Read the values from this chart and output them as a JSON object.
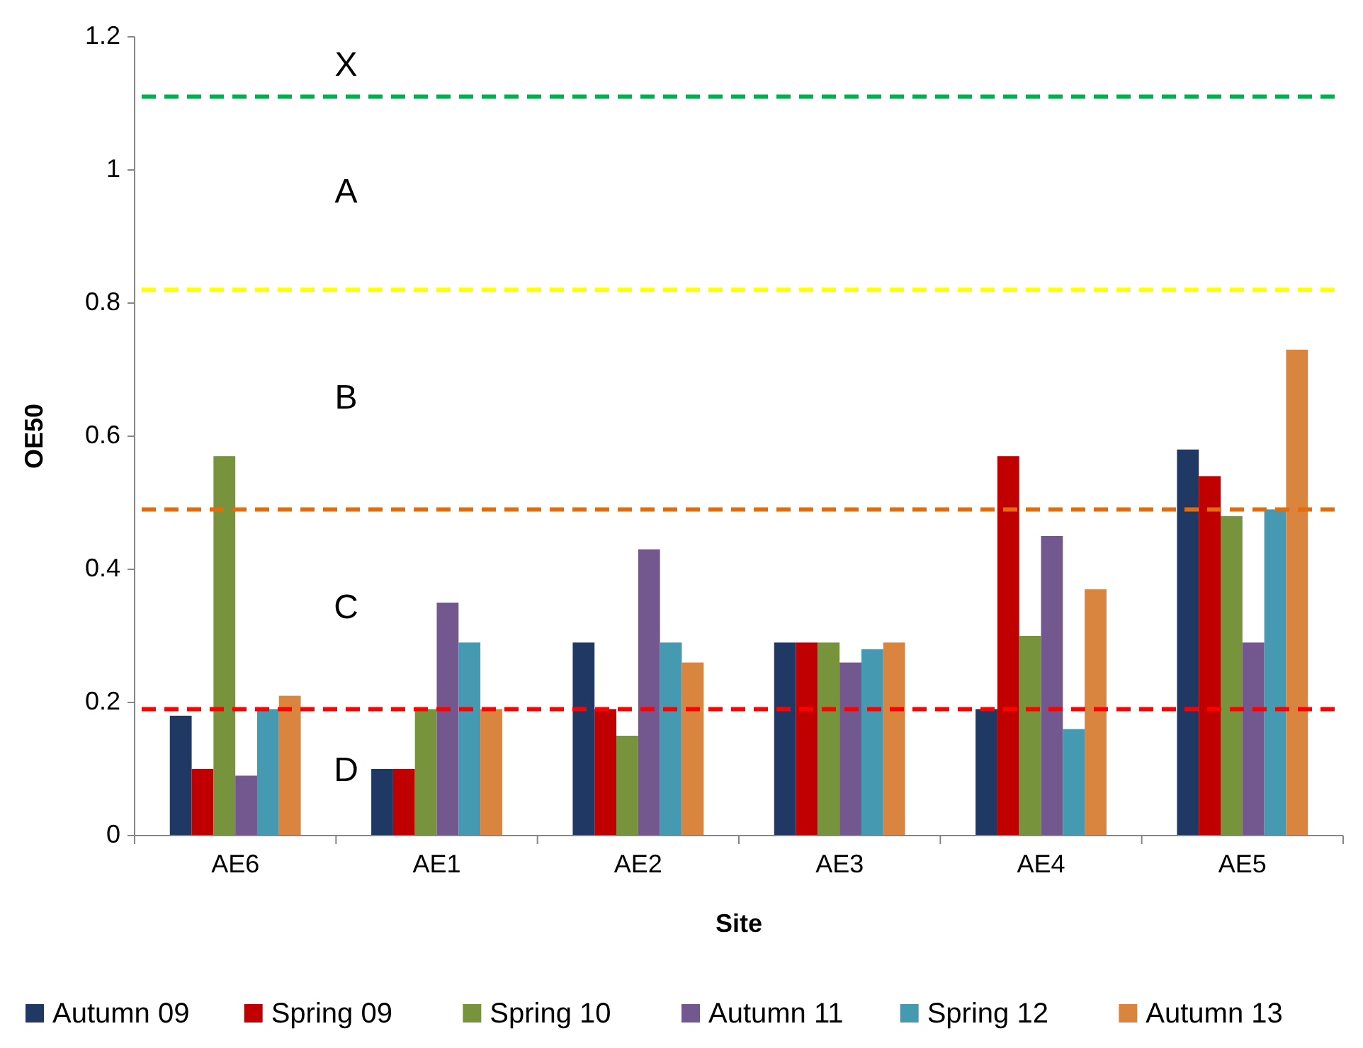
{
  "chart_data": {
    "type": "bar",
    "xlabel": "Site",
    "ylabel": "OE50",
    "categories": [
      "AE6",
      "AE1",
      "AE2",
      "AE3",
      "AE4",
      "AE5"
    ],
    "series": [
      {
        "name": "Autumn 09",
        "color": "#1f3864",
        "values": [
          0.18,
          0.1,
          0.29,
          0.29,
          0.19,
          0.58
        ]
      },
      {
        "name": "Spring 09",
        "color": "#c00000",
        "values": [
          0.1,
          0.1,
          0.19,
          0.29,
          0.57,
          0.54
        ]
      },
      {
        "name": "Spring 10",
        "color": "#77933c",
        "values": [
          0.57,
          0.19,
          0.15,
          0.29,
          0.3,
          0.48
        ]
      },
      {
        "name": "Autumn 11",
        "color": "#72588f",
        "values": [
          0.09,
          0.35,
          0.43,
          0.26,
          0.45,
          0.29
        ]
      },
      {
        "name": "Spring 12",
        "color": "#4599b0",
        "values": [
          0.19,
          0.29,
          0.29,
          0.28,
          0.16,
          0.49
        ]
      },
      {
        "name": "Autumn 13",
        "color": "#d9843f",
        "values": [
          0.21,
          0.19,
          0.26,
          0.29,
          0.37,
          0.73
        ]
      }
    ],
    "ylim": [
      0,
      1.2
    ],
    "yticks": [
      0,
      0.2,
      0.4,
      0.6,
      0.8,
      1,
      1.2
    ],
    "grid": false,
    "legend": "bottom",
    "ref_lines": [
      {
        "axis": "y",
        "value": 1.11,
        "color": "#00b050",
        "line_style": "dashed"
      },
      {
        "axis": "y",
        "value": 0.82,
        "color": "#ffff00",
        "line_style": "dashed"
      },
      {
        "axis": "y",
        "value": 0.49,
        "color": "#e46c0a",
        "line_style": "dashed"
      },
      {
        "axis": "y",
        "value": 0.19,
        "color": "#ff0000",
        "line_style": "dashed"
      }
    ],
    "annotations": [
      "X",
      "A",
      "B",
      "C",
      "D"
    ]
  }
}
